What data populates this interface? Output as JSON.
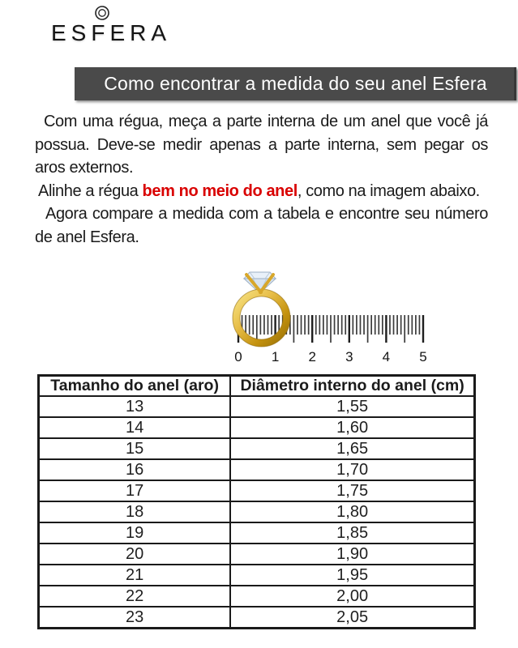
{
  "logo": {
    "text": "ESFERA"
  },
  "banner": {
    "title": "Como encontrar a medida do seu anel Esfera",
    "background_color": "#4a4a4a",
    "text_color": "#ffffff"
  },
  "instructions": {
    "p1": "Com uma régua, meça a parte interna de um anel que você já possua. Deve-se medir apenas a parte interna, sem pegar os aros externos.",
    "p2_before": "Alinhe a régua ",
    "p2_highlight": "bem no meio do anel",
    "p2_after": ", como na imagem abaixo.",
    "p3": "Agora compare a medida com a tabela e encontre seu número de anel Esfera.",
    "highlight_color": "#d90000"
  },
  "figure": {
    "description": "gold ring with diamond laid over a centimeter ruler",
    "ruler_labels": [
      "0",
      "1",
      "2",
      "3",
      "4",
      "5"
    ],
    "minor_ticks_per_unit": 10,
    "long_tick_every": 5,
    "gold_color": "#d9a520",
    "diamond_color": "#e9f1f9",
    "tick_color": "#3c3c3c"
  },
  "size_table": {
    "headers": [
      "Tamanho do anel (aro)",
      "Diâmetro interno do anel (cm)"
    ],
    "rows": [
      [
        "13",
        "1,55"
      ],
      [
        "14",
        "1,60"
      ],
      [
        "15",
        "1,65"
      ],
      [
        "16",
        "1,70"
      ],
      [
        "17",
        "1,75"
      ],
      [
        "18",
        "1,80"
      ],
      [
        "19",
        "1,85"
      ],
      [
        "20",
        "1,90"
      ],
      [
        "21",
        "1,95"
      ],
      [
        "22",
        "2,00"
      ],
      [
        "23",
        "2,05"
      ]
    ]
  }
}
